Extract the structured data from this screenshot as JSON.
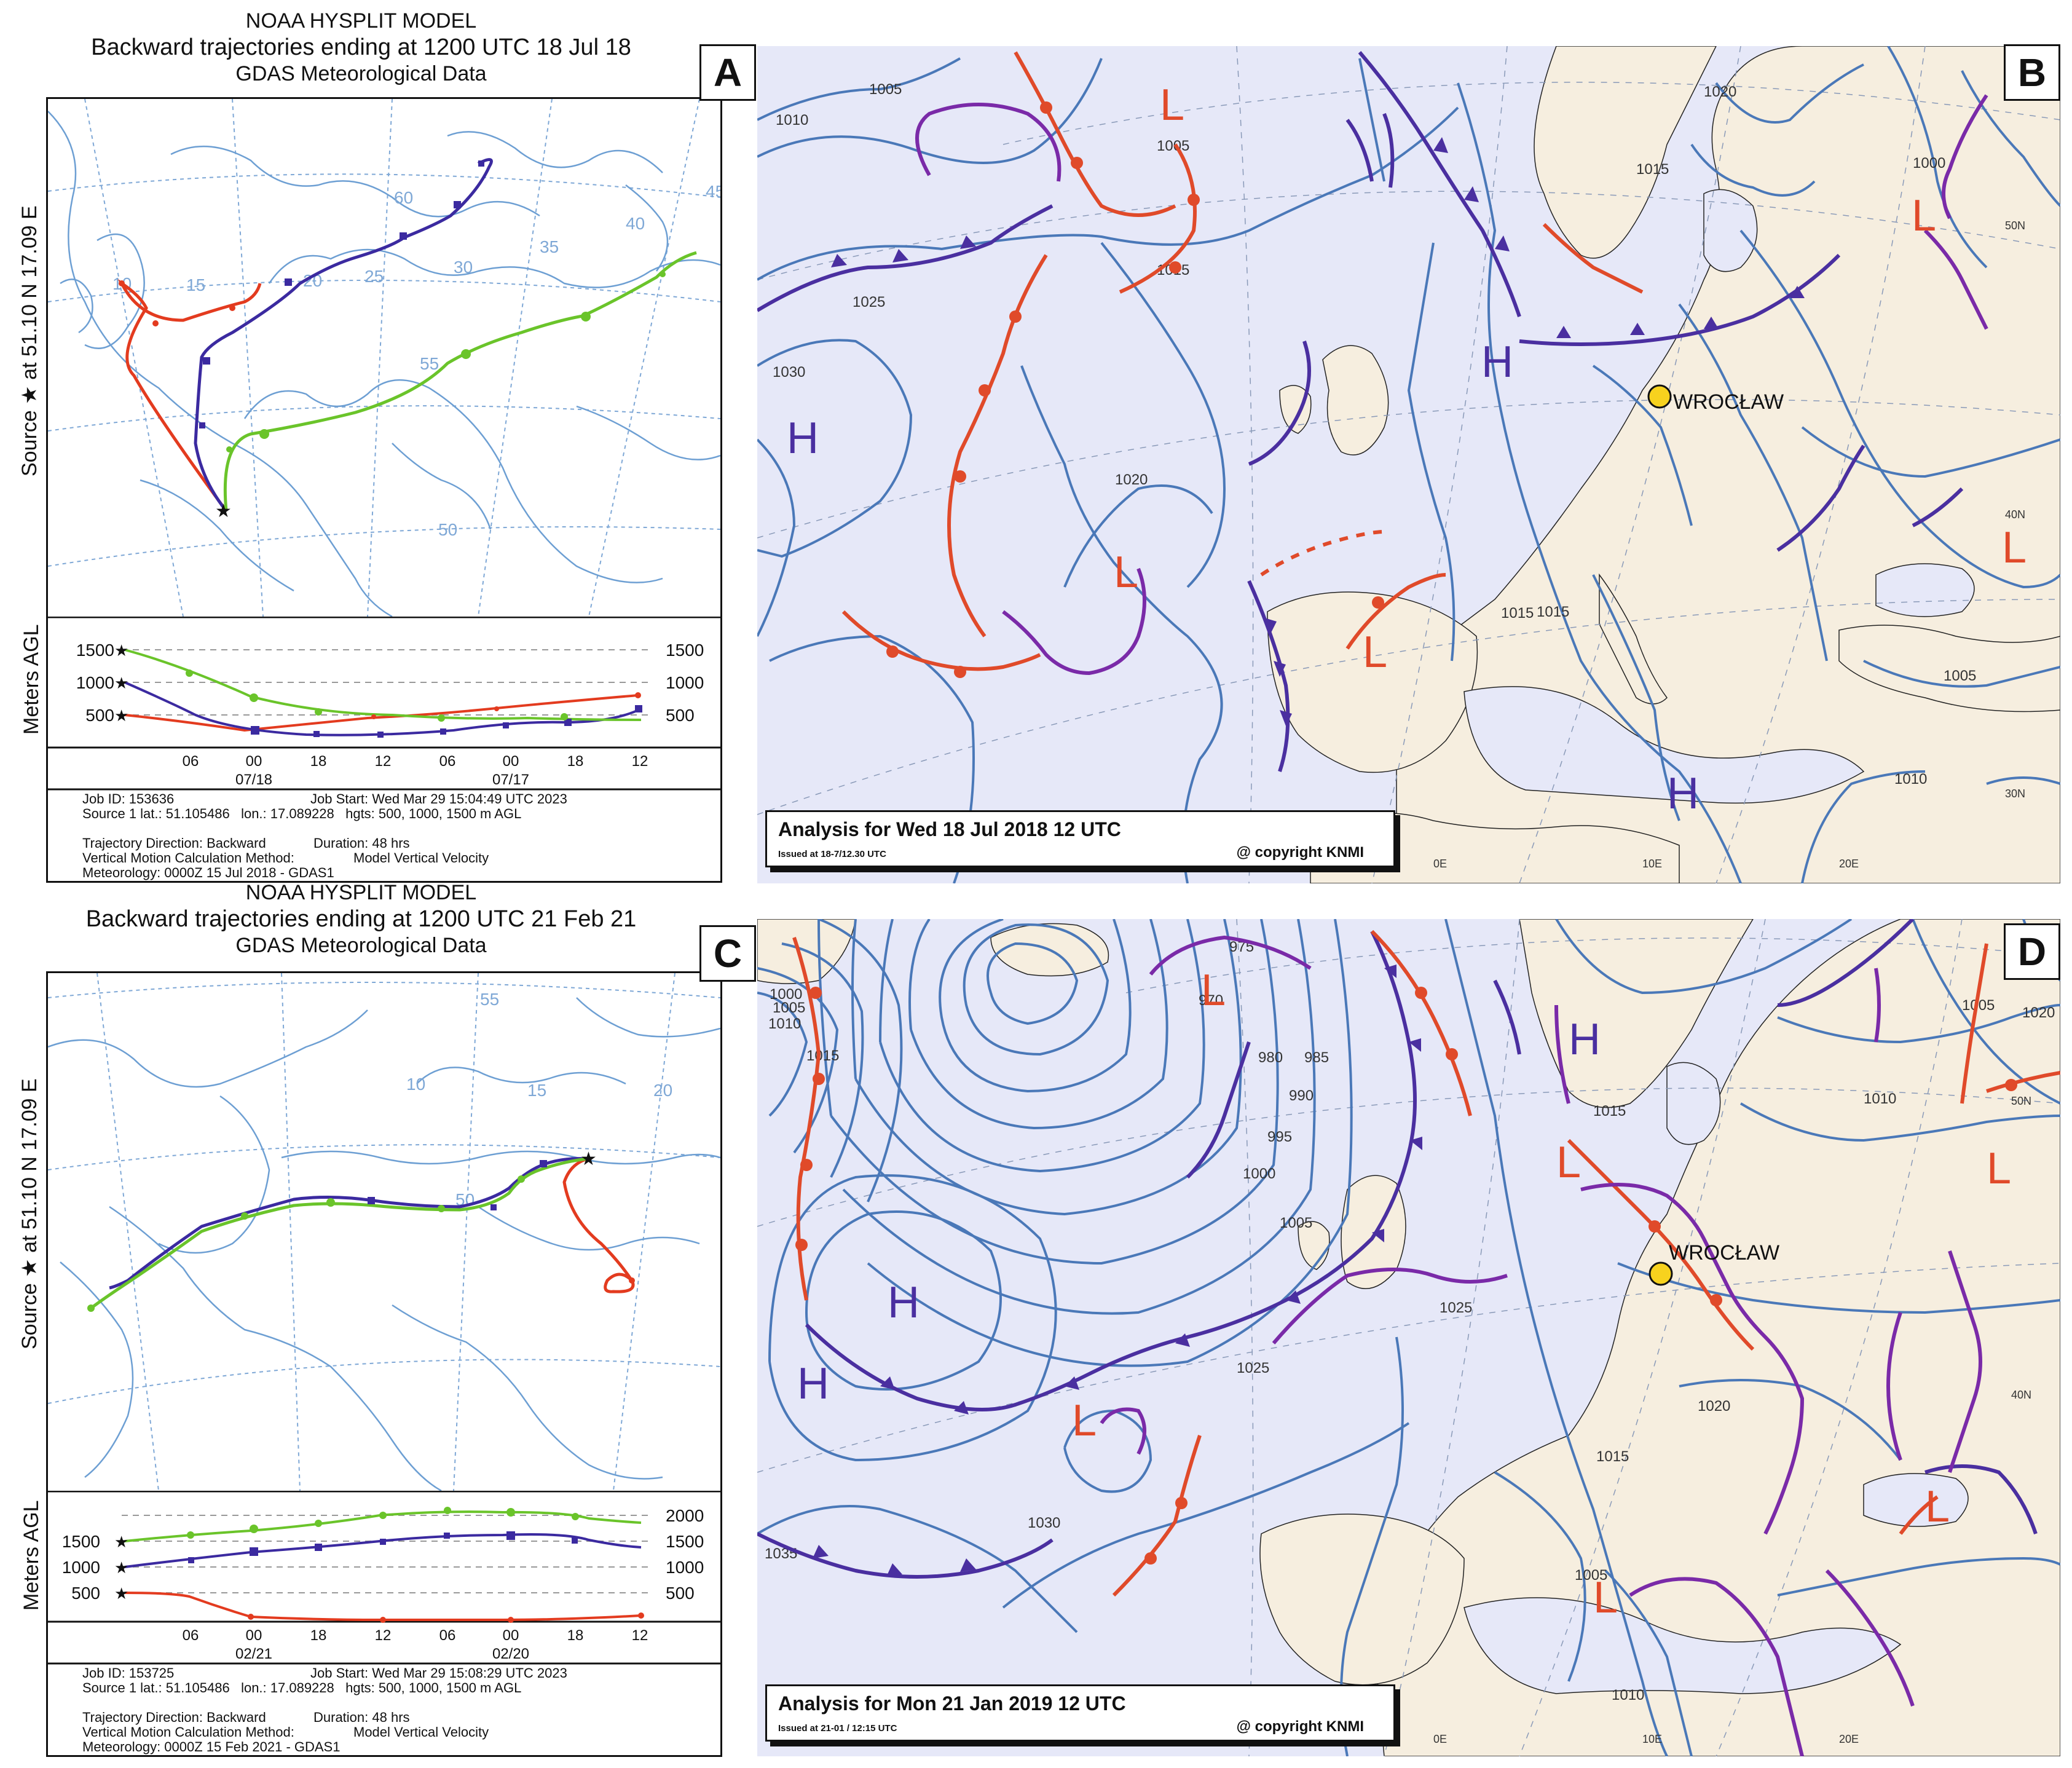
{
  "panels": {
    "A": {
      "letter": "A",
      "title1": "NOAA HYSPLIT MODEL",
      "title2": "Backward trajectories ending at 1200 UTC 18 Jul 18",
      "title3": "GDAS Meteorological Data",
      "source_label": "Source ★ at   51.10 N   17.09 E",
      "meters_label": "Meters AGL",
      "map_labels": [
        "10",
        "15",
        "20",
        "25",
        "30",
        "35",
        "40",
        "45",
        "55",
        "60",
        "50"
      ],
      "height_ticks_left": [
        "1500",
        "1000",
        "500"
      ],
      "height_ticks_right": [
        "1500",
        "1000",
        "500"
      ],
      "time_ticks": [
        "06",
        "00",
        "18",
        "12",
        "06",
        "00",
        "18",
        "12"
      ],
      "date_labels": [
        "07/18",
        "07/17"
      ],
      "meta": {
        "job_id": "Job ID: 153636",
        "job_start": "Job Start: Wed Mar 29 15:04:49 UTC 2023",
        "source": "Source 1 lat.: 51.105486   lon.: 17.089228   hgts: 500, 1000, 1500 m AGL",
        "direction": "Trajectory Direction: Backward",
        "duration": "Duration: 48 hrs",
        "vertical": "Vertical Motion Calculation Method:",
        "vertical_value": "Model Vertical Velocity",
        "meteorology": "Meteorology: 0000Z 15 Jul 2018 - GDAS1"
      }
    },
    "C": {
      "letter": "C",
      "title1": "NOAA HYSPLIT MODEL",
      "title2": "Backward trajectories ending at 1200 UTC 21 Feb 21",
      "title3": "GDAS Meteorological Data",
      "source_label": "Source ★ at   51.10 N   17.09 E",
      "meters_label": "Meters AGL",
      "map_labels": [
        "55",
        "10",
        "15",
        "20",
        "50"
      ],
      "height_ticks_left": [
        "1500",
        "1000",
        "500"
      ],
      "height_ticks_right": [
        "2000",
        "1500",
        "1000",
        "500"
      ],
      "time_ticks": [
        "06",
        "00",
        "18",
        "12",
        "06",
        "00",
        "18",
        "12"
      ],
      "date_labels": [
        "02/21",
        "02/20"
      ],
      "meta": {
        "job_id": "Job ID: 153725",
        "job_start": "Job Start: Wed Mar 29 15:08:29 UTC 2023",
        "source": "Source 1 lat.: 51.105486   lon.: 17.089228   hgts: 500, 1000, 1500 m AGL",
        "direction": "Trajectory Direction: Backward",
        "duration": "Duration: 48 hrs",
        "vertical": "Vertical Motion Calculation Method:",
        "vertical_value": "Model Vertical Velocity",
        "meteorology": "Meteorology: 0000Z 15 Feb 2021 - GDAS1"
      }
    },
    "B": {
      "letter": "B",
      "analysis": "Analysis for Wed 18 Jul 2018 12 UTC",
      "issued": "Issued at 18-7/12.30 UTC",
      "copyright": "@ copyright KNMI",
      "city": "WROCŁAW",
      "isobars": [
        "1005",
        "1010",
        "1025",
        "1030",
        "1020",
        "1015",
        "1005",
        "1020",
        "1015",
        "1000",
        "1015",
        "1015",
        "1005",
        "1010"
      ],
      "highs": [
        "H",
        "H",
        "H"
      ],
      "lows": [
        "L",
        "L",
        "L",
        "L",
        "L"
      ],
      "grid": [
        "0E",
        "10E",
        "20E",
        "30N",
        "40N",
        "50N"
      ]
    },
    "D": {
      "letter": "D",
      "analysis": "Analysis for Mon 21 Jan 2019 12 UTC",
      "issued": "Issued at 21-01 / 12:15 UTC",
      "copyright": "@ copyright KNMI",
      "city": "WROCŁAW",
      "isobars": [
        "1000",
        "1005",
        "1010",
        "1015",
        "975",
        "970",
        "980",
        "985",
        "990",
        "995",
        "1000",
        "1005",
        "1025",
        "1025",
        "1030",
        "1035",
        "1015",
        "1020",
        "1015",
        "1005",
        "1010",
        "1005",
        "1010",
        "1020"
      ],
      "highs": [
        "H",
        "H",
        "H"
      ],
      "lows": [
        "L",
        "L",
        "L",
        "L",
        "L",
        "L"
      ],
      "grid": [
        "0E",
        "10E",
        "20E",
        "40N",
        "50N"
      ]
    }
  },
  "colors": {
    "sea": "#e6e8f8",
    "land": "#f6eedf",
    "isobar": "#4a78b8",
    "cold_front": "#4a2fa0",
    "warm_front": "#e04a2a",
    "occluded": "#7a2aa8",
    "traj_red": "#e33b1f",
    "traj_blue": "#3b2aa0",
    "traj_green": "#6ac42a",
    "hysplit_grid": "#7fa8d6"
  }
}
